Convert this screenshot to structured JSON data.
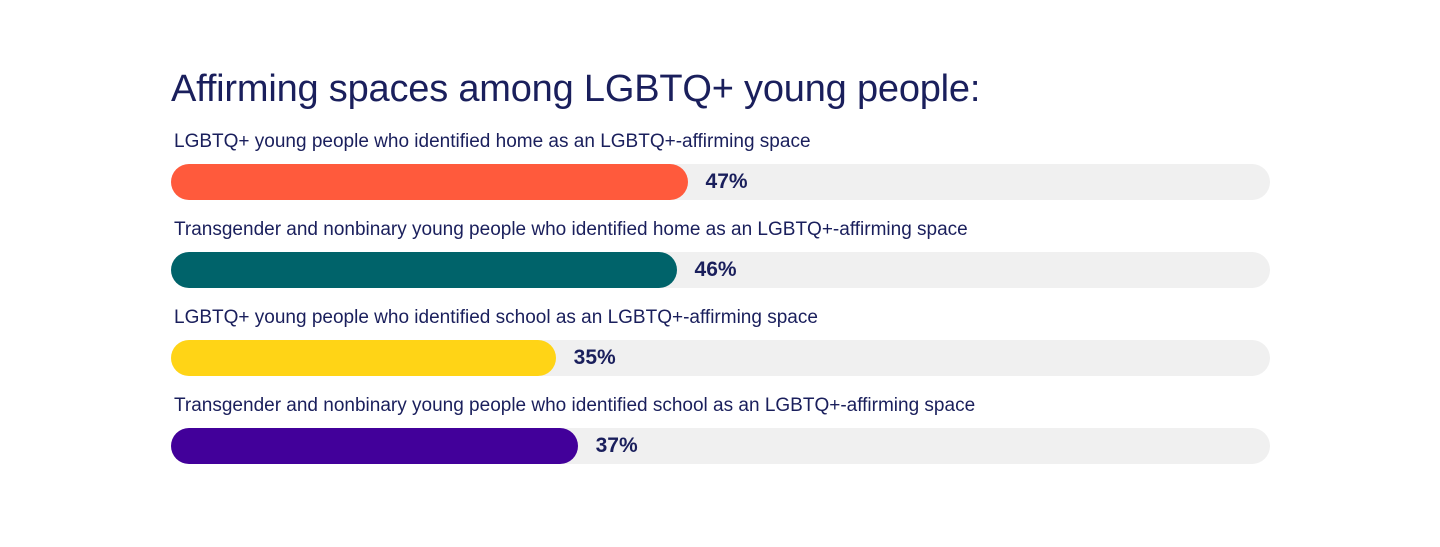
{
  "chart_data": {
    "type": "bar",
    "orientation": "horizontal",
    "title": "Affirming spaces among LGBTQ+ young people:",
    "xlim": [
      0,
      100
    ],
    "grid": false,
    "categories": [
      "LGBTQ+ young people who identified home as an LGBTQ+-affirming space",
      "Transgender and nonbinary young people who identified home as an LGBTQ+-affirming space",
      "LGBTQ+ young people who identified school as an LGBTQ+-affirming space",
      "Transgender and nonbinary young people who identified school as an LGBTQ+-affirming space"
    ],
    "values": [
      47,
      46,
      35,
      37
    ],
    "value_labels": [
      "47%",
      "46%",
      "35%",
      "37%"
    ],
    "colors": [
      "#ff5a3c",
      "#00636a",
      "#ffd416",
      "#42009a"
    ],
    "track_color": "#f0f0f0"
  }
}
